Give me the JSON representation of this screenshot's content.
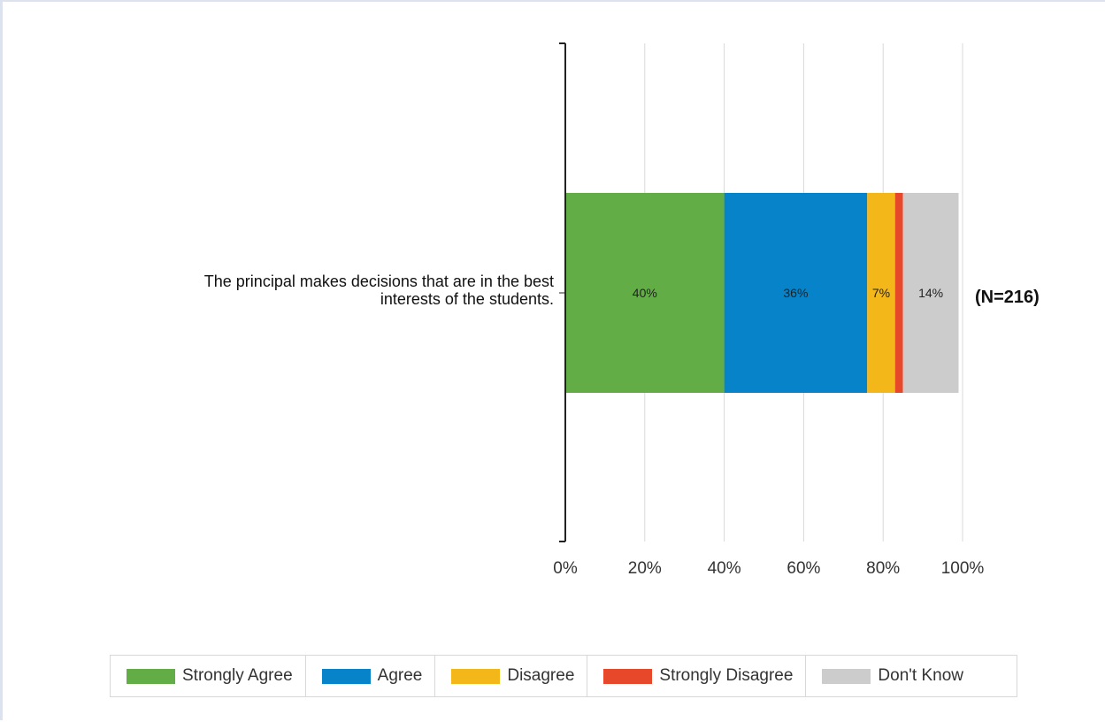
{
  "chart_data": {
    "type": "bar",
    "orientation": "horizontal",
    "stacked": true,
    "categories": [
      "The principal makes decisions that are in the best interests of the students."
    ],
    "category_lines": [
      "The principal makes decisions that are in the best",
      "interests of the students."
    ],
    "series": [
      {
        "name": "Strongly Agree",
        "color": "#62ad45",
        "values": [
          40
        ],
        "label": "40%"
      },
      {
        "name": "Agree",
        "color": "#0683c9",
        "values": [
          36
        ],
        "label": "36%"
      },
      {
        "name": "Disagree",
        "color": "#f3b71a",
        "values": [
          7
        ],
        "label": "7%"
      },
      {
        "name": "Strongly Disagree",
        "color": "#e8482a",
        "values": [
          2
        ],
        "label": ""
      },
      {
        "name": "Don't Know",
        "color": "#cccccc",
        "values": [
          14
        ],
        "label": "14%"
      }
    ],
    "annotation": "(N=216)",
    "xticks": [
      "0%",
      "20%",
      "40%",
      "60%",
      "80%",
      "100%"
    ],
    "xlim": [
      0,
      100
    ],
    "grid": true,
    "legend_position": "bottom"
  }
}
